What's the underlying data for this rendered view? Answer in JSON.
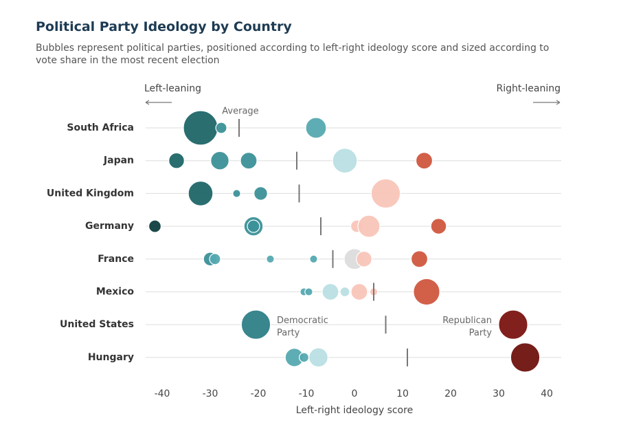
{
  "chart_data": {
    "type": "bubble",
    "title": "Political Party Ideology by Country",
    "subtitle": "Bubbles represent political parties, positioned according to left-right ideology score and sized according to vote share in the most recent election",
    "left_label": "Left-leaning",
    "right_label": "Right-leaning",
    "average_label": "Average",
    "annotations": [
      "Democratic Party",
      "Republican Party"
    ],
    "x_label": "Left-right ideology score",
    "xlim": [
      -43,
      43
    ],
    "xticks": [
      -40,
      -30,
      -20,
      -10,
      0,
      10,
      20,
      30,
      40
    ],
    "grid": true,
    "rows": [
      {
        "country": "South Africa",
        "average": -24,
        "x": [
          -32,
          -27.7,
          -8
        ],
        "size": [
          39,
          4,
          14
        ],
        "colors": [
          "#1f6668",
          "#3b9198",
          "#55a9b0"
        ]
      },
      {
        "country": "Japan",
        "average": -12,
        "x": [
          -37,
          -28,
          -22,
          -2,
          14.5
        ],
        "size": [
          8,
          11,
          9,
          20,
          9
        ],
        "colors": [
          "#1f6668",
          "#3b9198",
          "#3b9198",
          "#b9dfe3",
          "#d0573f"
        ]
      },
      {
        "country": "United Kingdom",
        "average": -11.5,
        "x": [
          -32,
          -24.5,
          -19.5,
          6.5
        ],
        "size": [
          20,
          2,
          6,
          28
        ],
        "colors": [
          "#1f6668",
          "#3b9198",
          "#3b9198",
          "#f9c5b8"
        ]
      },
      {
        "country": "Germany",
        "average": -7,
        "x": [
          -41.5,
          -21,
          -21,
          0.5,
          3,
          17.5
        ],
        "size": [
          5,
          12,
          5,
          5,
          16,
          8
        ],
        "colors": [
          "#0f3e3e",
          "#3b9198",
          "#3b9198",
          "#f9c5b8",
          "#f9c5b8",
          "#d0573f"
        ]
      },
      {
        "country": "France",
        "average": -4.5,
        "x": [
          -30,
          -29,
          -17.5,
          -8.5,
          0,
          2,
          13.5
        ],
        "size": [
          6,
          4,
          2,
          2,
          14,
          8,
          9
        ],
        "colors": [
          "#3b9198",
          "#55a9b0",
          "#55a9b0",
          "#55a9b0",
          "#dcdcdc",
          "#f9c5b8",
          "#d0573f"
        ]
      },
      {
        "country": "Mexico",
        "average": 4,
        "x": [
          -10.5,
          -9.5,
          -5,
          -2,
          1,
          4,
          15
        ],
        "size": [
          2,
          2,
          9,
          3,
          9,
          2,
          23
        ],
        "colors": [
          "#55a9b0",
          "#55a9b0",
          "#b9dfe3",
          "#b9dfe3",
          "#f9c5b8",
          "#f9c5b8",
          "#d0573f"
        ]
      },
      {
        "country": "United States",
        "average": 6.5,
        "x": [
          -20.5,
          33
        ],
        "size": [
          28,
          28
        ],
        "colors": [
          "#2e8087",
          "#7a1410"
        ]
      },
      {
        "country": "Hungary",
        "average": 11,
        "x": [
          -12.5,
          -10.5,
          -7.5,
          35.5
        ],
        "size": [
          11,
          3,
          12,
          28
        ],
        "colors": [
          "#55a9b0",
          "#55a9b0",
          "#b9dfe3",
          "#6e120e"
        ]
      }
    ]
  }
}
